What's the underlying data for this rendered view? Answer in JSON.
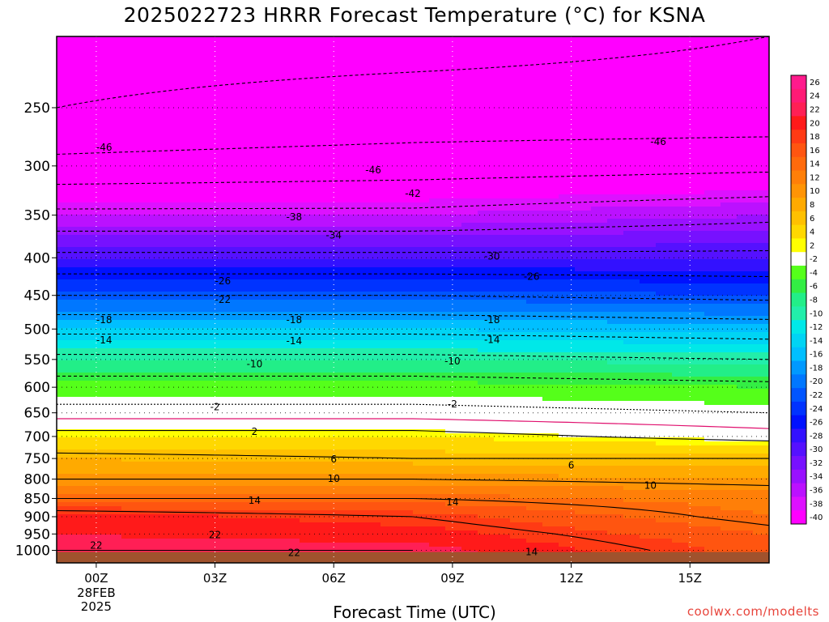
{
  "page": {
    "title": "2025022723 HRRR Forecast Temperature (°C) for KSNA",
    "xaxis_title": "Forecast Time (UTC)",
    "watermark": "coolwx.com/modelts"
  },
  "chart_data": {
    "type": "heatmap",
    "title": "2025022723 HRRR Forecast Temperature (°C) for KSNA",
    "xlabel": "Forecast Time (UTC)",
    "ylabel": "",
    "x_range_hours_after_00Z": [
      -1,
      17
    ],
    "y_range_hPa": [
      200,
      1040
    ],
    "y_scale": "log",
    "y_ticks": [
      250,
      300,
      350,
      400,
      450,
      500,
      550,
      600,
      650,
      700,
      750,
      800,
      850,
      900,
      950,
      1000
    ],
    "x_ticks": [
      {
        "label": "00Z",
        "sub": [
          "28FEB",
          "2025"
        ]
      },
      {
        "label": "03Z",
        "sub": []
      },
      {
        "label": "06Z",
        "sub": []
      },
      {
        "label": "09Z",
        "sub": []
      },
      {
        "label": "12Z",
        "sub": []
      },
      {
        "label": "15Z",
        "sub": []
      }
    ],
    "colorbar": {
      "labels": [
        "26",
        "24",
        "22",
        "20",
        "18",
        "16",
        "14",
        "12",
        "10",
        "8",
        "6",
        "4",
        "2",
        "-2",
        "-4",
        "-6",
        "-8",
        "-10",
        "-12",
        "-14",
        "-16",
        "-18",
        "-20",
        "-22",
        "-24",
        "-26",
        "-28",
        "-30",
        "-32",
        "-34",
        "-36",
        "-38",
        "-40"
      ],
      "colors": [
        "#ff1a8c",
        "#ff1a75",
        "#ff1f55",
        "#ff1a1a",
        "#ff3a14",
        "#ff5510",
        "#ff6a0c",
        "#ff7f08",
        "#ff9405",
        "#ffaa00",
        "#ffc000",
        "#ffd800",
        "#ffff00",
        "#ffffff",
        "#55ff1a",
        "#33ee44",
        "#22ee88",
        "#22eeaa",
        "#00e8e8",
        "#00d4f4",
        "#00bfff",
        "#0099ff",
        "#0077ff",
        "#0055ff",
        "#0033ff",
        "#0011ff",
        "#3311ff",
        "#5511ff",
        "#7711ff",
        "#9911ff",
        "#bb11ff",
        "#dd11ff",
        "#ff00ff"
      ]
    },
    "profiles": [
      {
        "x": -1,
        "levels": [
          1000,
          950,
          900,
          850,
          800,
          750,
          700,
          650,
          600,
          550,
          500,
          450,
          400,
          350,
          300,
          250,
          200
        ],
        "temps": [
          22,
          21,
          20,
          14,
          10,
          7,
          3,
          -1,
          -4,
          -9,
          -15,
          -22,
          -29,
          -37,
          -45,
          -50,
          -51
        ]
      },
      {
        "x": 8,
        "levels": [
          1000,
          950,
          900,
          850,
          800,
          750,
          700,
          650,
          600,
          550,
          500,
          450,
          400,
          350,
          300,
          250,
          200
        ],
        "temps": [
          22,
          20,
          18,
          14,
          10,
          6,
          3,
          -1,
          -4,
          -9,
          -15,
          -22,
          -29,
          -37,
          -44,
          -49,
          -51
        ]
      },
      {
        "x": 17,
        "levels": [
          1000,
          950,
          900,
          850,
          800,
          750,
          700,
          650,
          600,
          550,
          500,
          450,
          400,
          350,
          300,
          250,
          200
        ],
        "temps": [
          16,
          15,
          13,
          12,
          9,
          6,
          1,
          -2,
          -5,
          -10,
          -16,
          -23,
          -29,
          -35,
          -43,
          -49,
          -50
        ]
      }
    ],
    "contour_labels": [
      {
        "text": "-46",
        "x": 0.2,
        "p": 283
      },
      {
        "text": "-46",
        "x": 7.0,
        "p": 304
      },
      {
        "text": "-46",
        "x": 14.2,
        "p": 278
      },
      {
        "text": "-42",
        "x": 8.0,
        "p": 327
      },
      {
        "text": "-38",
        "x": 5.0,
        "p": 352
      },
      {
        "text": "-34",
        "x": 6.0,
        "p": 373
      },
      {
        "text": "-30",
        "x": 10.0,
        "p": 398
      },
      {
        "text": "-26",
        "x": 3.2,
        "p": 430
      },
      {
        "text": "-26",
        "x": 11.0,
        "p": 424
      },
      {
        "text": "-22",
        "x": 3.2,
        "p": 456
      },
      {
        "text": "-18",
        "x": 0.2,
        "p": 486
      },
      {
        "text": "-18",
        "x": 5.0,
        "p": 486
      },
      {
        "text": "-18",
        "x": 10.0,
        "p": 486
      },
      {
        "text": "-14",
        "x": 0.2,
        "p": 518
      },
      {
        "text": "-14",
        "x": 5.0,
        "p": 519
      },
      {
        "text": "-14",
        "x": 10.0,
        "p": 517
      },
      {
        "text": "-10",
        "x": 4.0,
        "p": 558
      },
      {
        "text": "-10",
        "x": 9.0,
        "p": 553
      },
      {
        "text": "-2",
        "x": 3.0,
        "p": 638
      },
      {
        "text": "-2",
        "x": 9.0,
        "p": 633
      },
      {
        "text": "2",
        "x": 4.0,
        "p": 690
      },
      {
        "text": "6",
        "x": 6.0,
        "p": 752
      },
      {
        "text": "6",
        "x": 12.0,
        "p": 766
      },
      {
        "text": "10",
        "x": 6.0,
        "p": 799
      },
      {
        "text": "10",
        "x": 14.0,
        "p": 816
      },
      {
        "text": "14",
        "x": 4.0,
        "p": 856
      },
      {
        "text": "14",
        "x": 9.0,
        "p": 860
      },
      {
        "text": "14",
        "x": 11.0,
        "p": 1005
      },
      {
        "text": "22",
        "x": 0.0,
        "p": 985
      },
      {
        "text": "22",
        "x": 3.0,
        "p": 953
      },
      {
        "text": "22",
        "x": 5.0,
        "p": 1007
      }
    ],
    "grid": true,
    "legend": "right colorbar"
  }
}
